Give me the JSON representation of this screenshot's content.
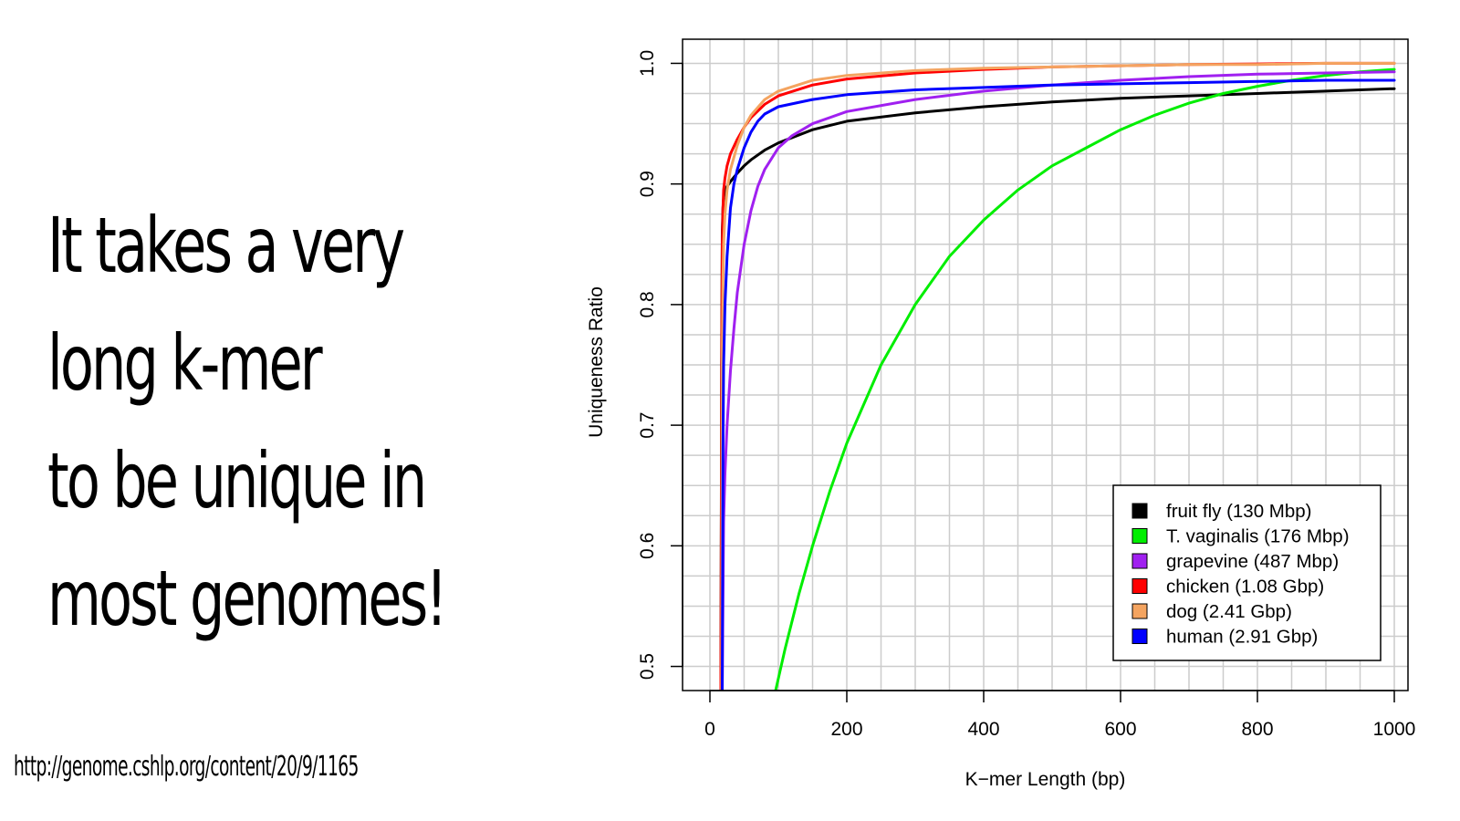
{
  "slide": {
    "title_lines": [
      "It takes a very",
      "long k-mer",
      "to be unique in",
      "most genomes!"
    ],
    "source_url": "http://genome.cshlp.org/content/20/9/1165"
  },
  "chart_data": {
    "type": "line",
    "title": "",
    "xlabel": "K−mer Length (bp)",
    "ylabel": "Uniqueness Ratio",
    "xlim": [
      -40,
      1020
    ],
    "ylim": [
      0.48,
      1.02
    ],
    "xticks": [
      0,
      200,
      400,
      600,
      800,
      1000
    ],
    "xtick_labels": [
      "0",
      "200",
      "400",
      "600",
      "800",
      "1000"
    ],
    "yticks": [
      0.5,
      0.6,
      0.7,
      0.8,
      0.9,
      1.0
    ],
    "ytick_labels": [
      "0.5",
      "0.6",
      "0.7",
      "0.8",
      "0.9",
      "1.0"
    ],
    "grid": true,
    "grid_step_x": 50,
    "grid_step_y": 0.025,
    "legend_position": "bottom-right",
    "series": [
      {
        "name": "fruit fly (130 Mbp)",
        "color": "#000000",
        "x": [
          16,
          17,
          18,
          19,
          20,
          22,
          25,
          30,
          40,
          50,
          60,
          80,
          100,
          150,
          200,
          300,
          400,
          500,
          600,
          700,
          800,
          900,
          1000
        ],
        "y": [
          0.48,
          0.75,
          0.86,
          0.88,
          0.888,
          0.894,
          0.898,
          0.902,
          0.909,
          0.915,
          0.92,
          0.928,
          0.934,
          0.945,
          0.952,
          0.959,
          0.964,
          0.968,
          0.971,
          0.973,
          0.975,
          0.977,
          0.979
        ]
      },
      {
        "name": "T. vaginalis (176 Mbp)",
        "color": "#00ee00",
        "x": [
          96,
          110,
          130,
          150,
          175,
          200,
          250,
          300,
          350,
          400,
          450,
          500,
          550,
          600,
          650,
          700,
          750,
          800,
          850,
          900,
          950,
          1000
        ],
        "y": [
          0.48,
          0.515,
          0.56,
          0.6,
          0.645,
          0.685,
          0.75,
          0.8,
          0.84,
          0.87,
          0.895,
          0.915,
          0.93,
          0.945,
          0.957,
          0.967,
          0.975,
          0.981,
          0.986,
          0.99,
          0.993,
          0.995
        ]
      },
      {
        "name": "grapevine (487 Mbp)",
        "color": "#a020f0",
        "x": [
          18,
          20,
          22,
          25,
          30,
          35,
          40,
          50,
          60,
          70,
          80,
          100,
          120,
          150,
          200,
          300,
          400,
          500,
          600,
          700,
          800,
          900,
          1000
        ],
        "y": [
          0.48,
          0.62,
          0.66,
          0.7,
          0.745,
          0.78,
          0.81,
          0.85,
          0.878,
          0.898,
          0.912,
          0.93,
          0.94,
          0.95,
          0.96,
          0.97,
          0.977,
          0.982,
          0.986,
          0.989,
          0.991,
          0.992,
          0.993
        ]
      },
      {
        "name": "chicken (1.08 Gbp)",
        "color": "#ff0000",
        "x": [
          16,
          17,
          18,
          19,
          20,
          22,
          25,
          30,
          40,
          50,
          60,
          80,
          100,
          150,
          200,
          300,
          400,
          500,
          600,
          700,
          800,
          900,
          1000
        ],
        "y": [
          0.48,
          0.72,
          0.85,
          0.88,
          0.895,
          0.905,
          0.915,
          0.925,
          0.937,
          0.947,
          0.955,
          0.966,
          0.973,
          0.982,
          0.987,
          0.992,
          0.995,
          0.997,
          0.998,
          0.999,
          0.9995,
          1.0,
          1.0
        ]
      },
      {
        "name": "dog (2.41 Gbp)",
        "color": "#f4a460",
        "x": [
          17,
          18,
          19,
          20,
          22,
          25,
          30,
          40,
          50,
          60,
          80,
          100,
          150,
          200,
          300,
          400,
          500,
          600,
          700,
          800,
          900,
          1000
        ],
        "y": [
          0.48,
          0.75,
          0.82,
          0.85,
          0.875,
          0.895,
          0.912,
          0.932,
          0.947,
          0.957,
          0.97,
          0.977,
          0.986,
          0.99,
          0.994,
          0.996,
          0.997,
          0.998,
          0.999,
          0.999,
          1.0,
          1.0
        ]
      },
      {
        "name": "human (2.91 Gbp)",
        "color": "#0000ff",
        "x": [
          18,
          19,
          20,
          22,
          25,
          30,
          35,
          40,
          50,
          60,
          70,
          80,
          100,
          150,
          200,
          300,
          400,
          500,
          600,
          700,
          800,
          900,
          1000
        ],
        "y": [
          0.48,
          0.68,
          0.75,
          0.8,
          0.84,
          0.88,
          0.9,
          0.912,
          0.93,
          0.943,
          0.952,
          0.958,
          0.964,
          0.97,
          0.974,
          0.978,
          0.98,
          0.982,
          0.983,
          0.984,
          0.985,
          0.986,
          0.986
        ]
      }
    ]
  }
}
